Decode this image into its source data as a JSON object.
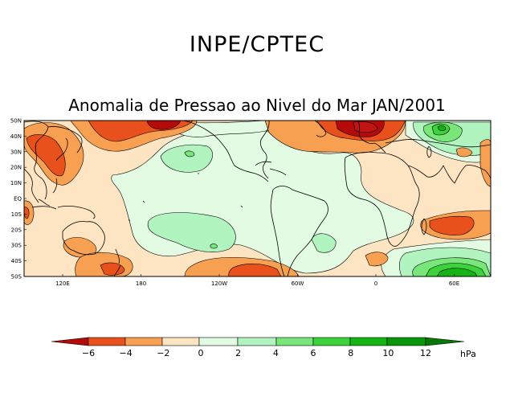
{
  "header": {
    "title": "INPE/CPTEC",
    "subtitle": "Anomalia de Pressao ao Nivel do Mar JAN/2001"
  },
  "map": {
    "lat_ticks": [
      "50N",
      "40N",
      "30N",
      "20N",
      "10N",
      "EQ",
      "10S",
      "20S",
      "30S",
      "40S",
      "50S"
    ],
    "lon_ticks": [
      "120E",
      "180",
      "120W",
      "60W",
      "0",
      "60E"
    ],
    "lat_range": [
      -50,
      50
    ],
    "lon_range": [
      "100E",
      "-0 (wrap)",
      "90E"
    ]
  },
  "colorbar": {
    "unit": "hPa",
    "tick_labels": [
      "−6",
      "−4",
      "−2",
      "0",
      "2",
      "4",
      "6",
      "8",
      "10",
      "12"
    ],
    "colors": {
      "lt_neg6": "#b40a0a",
      "neg6_neg4": "#e8501c",
      "neg4_neg2": "#f8a052",
      "neg2_0": "#fde4c2",
      "zero_2": "#e2fbe2",
      "two_4": "#b2f4c0",
      "four_6": "#78e678",
      "six_8": "#3cd23c",
      "eight_10": "#14b414",
      "ten_12": "#0a960a",
      "gt_12": "#057805"
    }
  },
  "colors": {
    "land_outline": "#000000",
    "contour": "#000000",
    "background": "#ffffff"
  }
}
